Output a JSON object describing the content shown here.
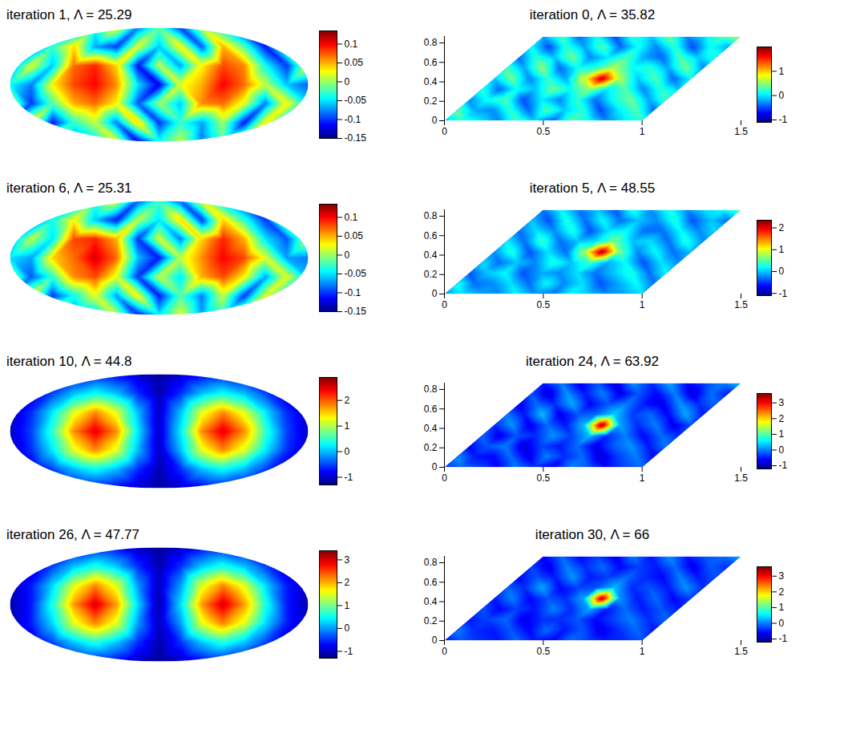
{
  "chart_data": [
    {
      "type": "skymap",
      "title": "iteration 1, Λ = 25.29",
      "color": "jet",
      "tick_labels": false,
      "colorbar_range": [
        -0.15,
        0.135
      ],
      "colorbar_ticks": [
        -0.15,
        -0.1,
        -0.05,
        0,
        0.05,
        0.1
      ],
      "cells": [
        [
          -0.06,
          -0.09,
          0.02,
          -0.11,
          -0.04,
          0.03,
          -0.08,
          -0.02,
          -0.1,
          0.01,
          -0.05,
          -0.12,
          0.02,
          -0.07,
          -0.03
        ],
        [
          0.01,
          -0.12,
          -0.03,
          0.04,
          -0.07,
          -0.1,
          0.02,
          -0.06,
          0.03,
          -0.09,
          0.05,
          -0.02,
          -0.11,
          0.0,
          -0.08
        ],
        [
          -0.09,
          0.02,
          -0.06,
          0.07,
          0.09,
          0.04,
          -0.11,
          0.01,
          -0.07,
          0.03,
          0.08,
          0.06,
          -0.04,
          -0.1,
          0.02
        ],
        [
          -0.04,
          -0.08,
          0.03,
          0.08,
          0.1,
          0.06,
          -0.05,
          -0.12,
          0.02,
          0.05,
          0.1,
          0.07,
          0.01,
          -0.06,
          -0.09
        ],
        [
          0.02,
          -0.1,
          -0.02,
          0.05,
          0.07,
          0.03,
          -0.09,
          0.0,
          -0.06,
          0.06,
          0.07,
          0.02,
          -0.08,
          0.03,
          -0.05
        ],
        [
          -0.07,
          0.03,
          -0.11,
          -0.03,
          0.01,
          -0.08,
          0.04,
          -0.1,
          -0.03,
          -0.07,
          0.0,
          -0.11,
          0.03,
          -0.06,
          0.01
        ],
        [
          -0.03,
          -0.06,
          0.01,
          -0.09,
          -0.05,
          0.02,
          -0.12,
          -0.04,
          0.01,
          -0.08,
          -0.02,
          0.03,
          -0.1,
          -0.05,
          -0.07
        ]
      ]
    },
    {
      "type": "heatmap",
      "title": "iteration 0, Λ = 35.82",
      "color": "jet",
      "xlim": [
        0,
        1.5
      ],
      "ylim": [
        0,
        0.866
      ],
      "xticks": [
        0,
        0.5,
        1,
        1.5
      ],
      "yticks": [
        0,
        0.2,
        0.4,
        0.6,
        0.8
      ],
      "domain_corners": [
        [
          0,
          0
        ],
        [
          1,
          0
        ],
        [
          1.5,
          0.866
        ],
        [
          0.5,
          0.866
        ]
      ],
      "colorbar_range": [
        -1.1,
        2.0
      ],
      "colorbar_ticks": [
        -1,
        0,
        1
      ],
      "cells": [
        [
          -0.2,
          0.3,
          -0.4,
          0.1,
          -0.5,
          0.2,
          -0.1,
          0.4,
          -0.3,
          0.0,
          0.3,
          0.6
        ],
        [
          0.1,
          -0.5,
          0.2,
          -0.2,
          0.3,
          -0.4,
          0.1,
          -0.3,
          0.2,
          -0.5,
          0.1,
          -0.2
        ],
        [
          -0.4,
          0.2,
          -0.1,
          0.4,
          -0.3,
          0.0,
          0.3,
          -0.2,
          -0.4,
          0.3,
          -0.1,
          0.2
        ],
        [
          0.3,
          -0.2,
          0.5,
          -0.4,
          0.1,
          0.2,
          0.6,
          0.1,
          0.2,
          -0.2,
          0.4,
          -0.3
        ],
        [
          -0.1,
          0.4,
          -0.3,
          0.2,
          -0.2,
          0.7,
          1.8,
          0.6,
          -0.1,
          0.3,
          -0.4,
          0.1
        ],
        [
          0.2,
          -0.4,
          0.1,
          -0.1,
          0.4,
          0.1,
          0.5,
          0.0,
          0.3,
          -0.3,
          0.2,
          -0.1
        ],
        [
          -0.3,
          0.1,
          0.3,
          -0.5,
          0.0,
          -0.3,
          0.2,
          -0.4,
          0.1,
          0.4,
          -0.2,
          0.3
        ],
        [
          0.4,
          -0.2,
          -0.3,
          0.2,
          -0.4,
          0.3,
          -0.1,
          0.2,
          -0.5,
          0.0,
          0.3,
          -0.4
        ],
        [
          -0.1,
          0.2,
          0.0,
          -0.3,
          0.3,
          -0.1,
          -0.4,
          0.3,
          0.1,
          -0.3,
          0.0,
          0.2
        ]
      ]
    },
    {
      "type": "skymap",
      "title": "iteration 6, Λ = 25.31",
      "color": "jet",
      "tick_labels": false,
      "colorbar_range": [
        -0.15,
        0.135
      ],
      "colorbar_ticks": [
        -0.15,
        -0.1,
        -0.05,
        0,
        0.05,
        0.1
      ],
      "cells": [
        [
          -0.05,
          -0.1,
          0.01,
          -0.1,
          -0.03,
          0.02,
          -0.09,
          -0.03,
          -0.09,
          0.02,
          -0.06,
          -0.11,
          0.03,
          -0.08,
          -0.04
        ],
        [
          0.02,
          -0.11,
          -0.04,
          0.03,
          -0.06,
          -0.11,
          0.01,
          -0.05,
          0.04,
          -0.1,
          0.04,
          -0.03,
          -0.1,
          0.01,
          -0.07
        ],
        [
          -0.08,
          0.01,
          -0.05,
          0.08,
          0.09,
          0.05,
          -0.1,
          0.02,
          -0.08,
          0.04,
          0.09,
          0.05,
          -0.05,
          -0.09,
          0.01
        ],
        [
          -0.05,
          -0.07,
          0.04,
          0.07,
          0.11,
          0.07,
          -0.06,
          -0.11,
          0.01,
          0.06,
          0.1,
          0.08,
          0.02,
          -0.07,
          -0.08
        ],
        [
          0.01,
          -0.09,
          -0.03,
          0.06,
          0.08,
          0.02,
          -0.1,
          0.01,
          -0.05,
          0.05,
          0.08,
          0.03,
          -0.07,
          0.02,
          -0.06
        ],
        [
          -0.06,
          0.02,
          -0.1,
          -0.04,
          0.02,
          -0.07,
          0.03,
          -0.11,
          -0.02,
          -0.08,
          0.01,
          -0.1,
          0.02,
          -0.05,
          0.0
        ],
        [
          -0.04,
          -0.05,
          0.02,
          -0.08,
          -0.06,
          0.01,
          -0.11,
          -0.05,
          0.02,
          -0.07,
          -0.03,
          0.02,
          -0.09,
          -0.06,
          -0.08
        ]
      ]
    },
    {
      "type": "heatmap",
      "title": "iteration 5, Λ = 48.55",
      "color": "jet",
      "xlim": [
        0,
        1.5
      ],
      "ylim": [
        0,
        0.866
      ],
      "xticks": [
        0,
        0.5,
        1,
        1.5
      ],
      "yticks": [
        0,
        0.2,
        0.4,
        0.6,
        0.8
      ],
      "domain_corners": [
        [
          0,
          0
        ],
        [
          1,
          0
        ],
        [
          1.5,
          0.866
        ],
        [
          0.5,
          0.866
        ]
      ],
      "colorbar_range": [
        -1.1,
        2.35
      ],
      "colorbar_ticks": [
        -1,
        0,
        1,
        2
      ],
      "cells": [
        [
          -0.3,
          0.2,
          -0.3,
          0.0,
          -0.4,
          0.3,
          -0.2,
          0.3,
          -0.2,
          0.1,
          0.2,
          0.5
        ],
        [
          0.0,
          -0.4,
          0.3,
          -0.3,
          0.2,
          -0.3,
          0.0,
          -0.2,
          0.3,
          -0.4,
          0.0,
          -0.3
        ],
        [
          -0.3,
          0.1,
          -0.2,
          0.3,
          -0.4,
          0.1,
          0.2,
          -0.3,
          -0.3,
          0.2,
          -0.2,
          0.1
        ],
        [
          0.2,
          -0.3,
          0.4,
          -0.3,
          0.0,
          0.1,
          0.6,
          0.0,
          0.1,
          -0.3,
          0.3,
          -0.2
        ],
        [
          -0.2,
          0.3,
          -0.4,
          0.1,
          -0.3,
          0.7,
          2.2,
          0.6,
          -0.2,
          0.2,
          -0.3,
          0.0
        ],
        [
          0.1,
          -0.3,
          0.0,
          -0.2,
          0.3,
          0.0,
          0.4,
          -0.1,
          0.2,
          -0.4,
          0.1,
          -0.2
        ],
        [
          -0.4,
          0.0,
          0.2,
          -0.4,
          -0.1,
          -0.2,
          0.1,
          -0.3,
          0.0,
          0.3,
          -0.3,
          0.2
        ],
        [
          0.3,
          -0.3,
          -0.2,
          0.1,
          -0.3,
          0.2,
          -0.2,
          0.1,
          -0.4,
          -0.1,
          0.2,
          -0.3
        ],
        [
          -0.2,
          0.1,
          -0.1,
          -0.2,
          0.2,
          -0.2,
          -0.3,
          0.2,
          0.0,
          -0.2,
          -0.1,
          0.1
        ]
      ]
    },
    {
      "type": "skymap",
      "title": "iteration 10, Λ = 44.8",
      "color": "jet",
      "tick_labels": false,
      "colorbar_range": [
        -1.3,
        2.9
      ],
      "colorbar_ticks": [
        -1,
        0,
        1,
        2
      ],
      "cells": [
        [
          -1.2,
          -1.1,
          -1.0,
          -0.8,
          -0.7,
          -0.8,
          -1.0,
          -1.2,
          -1.0,
          -0.8,
          -0.7,
          -0.8,
          -1.0,
          -1.1,
          -1.2
        ],
        [
          -1.1,
          -0.9,
          -0.5,
          0.0,
          0.3,
          0.0,
          -0.6,
          -1.1,
          -0.6,
          0.0,
          0.3,
          0.0,
          -0.5,
          -0.9,
          -1.1
        ],
        [
          -1.0,
          -0.6,
          0.2,
          1.2,
          1.8,
          1.2,
          0.0,
          -1.0,
          0.0,
          1.2,
          1.8,
          1.2,
          0.2,
          -0.6,
          -1.0
        ],
        [
          -1.0,
          -0.5,
          0.5,
          1.8,
          2.5,
          1.8,
          0.2,
          -1.0,
          0.2,
          1.8,
          2.5,
          1.8,
          0.5,
          -0.5,
          -1.0
        ],
        [
          -1.0,
          -0.6,
          0.2,
          1.2,
          1.8,
          1.2,
          0.0,
          -1.0,
          0.0,
          1.2,
          1.8,
          1.2,
          0.2,
          -0.6,
          -1.0
        ],
        [
          -1.1,
          -0.9,
          -0.5,
          0.0,
          0.3,
          0.0,
          -0.6,
          -1.1,
          -0.6,
          0.0,
          0.3,
          0.0,
          -0.5,
          -0.9,
          -1.1
        ],
        [
          -1.2,
          -1.1,
          -1.0,
          -0.8,
          -0.7,
          -0.8,
          -1.0,
          -1.2,
          -1.0,
          -0.8,
          -0.7,
          -0.8,
          -1.0,
          -1.1,
          -1.2
        ]
      ]
    },
    {
      "type": "heatmap",
      "title": "iteration 24, Λ = 63.92",
      "color": "jet",
      "xlim": [
        0,
        1.5
      ],
      "ylim": [
        0,
        0.866
      ],
      "xticks": [
        0,
        0.5,
        1,
        1.5
      ],
      "yticks": [
        0,
        0.2,
        0.4,
        0.6,
        0.8
      ],
      "domain_corners": [
        [
          0,
          0
        ],
        [
          1,
          0
        ],
        [
          1.5,
          0.866
        ],
        [
          0.5,
          0.866
        ]
      ],
      "colorbar_range": [
        -1.2,
        3.6
      ],
      "colorbar_ticks": [
        -1,
        0,
        1,
        2,
        3
      ],
      "cells": [
        [
          -0.5,
          0.0,
          -0.7,
          -0.2,
          -0.8,
          0.1,
          -0.4,
          0.2,
          -0.6,
          -0.3,
          0.0,
          0.3
        ],
        [
          -0.2,
          -0.8,
          0.1,
          -0.5,
          0.0,
          -0.7,
          -0.2,
          -0.6,
          0.0,
          -0.8,
          -0.1,
          -0.5
        ],
        [
          -0.7,
          -0.1,
          -0.4,
          0.2,
          -0.6,
          -0.2,
          0.0,
          -0.5,
          -0.7,
          0.1,
          -0.4,
          -0.1
        ],
        [
          0.0,
          -0.5,
          0.3,
          -0.7,
          -0.2,
          -0.1,
          0.4,
          -0.3,
          -0.1,
          -0.6,
          0.2,
          -0.5
        ],
        [
          -0.4,
          0.1,
          -0.7,
          -0.1,
          -0.5,
          0.3,
          3.5,
          0.2,
          -0.4,
          0.0,
          -0.7,
          -0.2
        ],
        [
          -0.1,
          -0.7,
          -0.2,
          -0.4,
          0.1,
          -0.3,
          0.3,
          -0.4,
          0.0,
          -0.6,
          -0.1,
          -0.4
        ],
        [
          -0.6,
          -0.2,
          0.0,
          -0.8,
          -0.3,
          -0.5,
          -0.1,
          -0.7,
          -0.2,
          0.1,
          -0.5,
          0.0
        ],
        [
          0.1,
          -0.5,
          -0.6,
          -0.1,
          -0.7,
          0.0,
          -0.4,
          -0.1,
          -0.8,
          -0.3,
          0.0,
          -0.6
        ],
        [
          -0.4,
          -0.1,
          -0.3,
          -0.6,
          0.0,
          -0.4,
          -0.7,
          0.0,
          -0.2,
          -0.6,
          -0.3,
          -0.1
        ]
      ]
    },
    {
      "type": "skymap",
      "title": "iteration 26, Λ = 47.77",
      "color": "jet",
      "tick_labels": false,
      "colorbar_range": [
        -1.3,
        3.4
      ],
      "colorbar_ticks": [
        -1,
        0,
        1,
        2,
        3
      ],
      "cells": [
        [
          -1.2,
          -1.1,
          -1.0,
          -0.7,
          -0.6,
          -0.7,
          -1.0,
          -1.2,
          -1.0,
          -0.7,
          -0.6,
          -0.7,
          -1.0,
          -1.1,
          -1.2
        ],
        [
          -1.1,
          -0.9,
          -0.4,
          0.2,
          0.6,
          0.2,
          -0.5,
          -1.1,
          -0.5,
          0.2,
          0.6,
          0.2,
          -0.4,
          -0.9,
          -1.1
        ],
        [
          -1.0,
          -0.6,
          0.3,
          1.5,
          2.2,
          1.5,
          0.0,
          -1.0,
          0.0,
          1.5,
          2.2,
          1.5,
          0.3,
          -0.6,
          -1.0
        ],
        [
          -1.1,
          -0.6,
          0.6,
          2.1,
          3.0,
          2.1,
          0.3,
          -1.1,
          0.3,
          2.1,
          3.0,
          2.1,
          0.6,
          -0.6,
          -1.1
        ],
        [
          -1.0,
          -0.6,
          0.3,
          1.5,
          2.2,
          1.5,
          0.0,
          -1.0,
          0.0,
          1.5,
          2.2,
          1.5,
          0.3,
          -0.6,
          -1.0
        ],
        [
          -1.1,
          -0.9,
          -0.4,
          0.2,
          0.6,
          0.2,
          -0.5,
          -1.1,
          -0.5,
          0.2,
          0.6,
          0.2,
          -0.4,
          -0.9,
          -1.1
        ],
        [
          -1.2,
          -1.1,
          -1.0,
          -0.7,
          -0.6,
          -0.7,
          -1.0,
          -1.2,
          -1.0,
          -0.7,
          -0.6,
          -0.7,
          -1.0,
          -1.1,
          -1.2
        ]
      ]
    },
    {
      "type": "heatmap",
      "title": "iteration 30, Λ = 66",
      "color": "jet",
      "xlim": [
        0,
        1.5
      ],
      "ylim": [
        0,
        0.866
      ],
      "xticks": [
        0,
        0.5,
        1,
        1.5
      ],
      "yticks": [
        0,
        0.2,
        0.4,
        0.6,
        0.8
      ],
      "domain_corners": [
        [
          0,
          0
        ],
        [
          1,
          0
        ],
        [
          1.5,
          0.866
        ],
        [
          0.5,
          0.866
        ]
      ],
      "colorbar_range": [
        -1.2,
        3.6
      ],
      "colorbar_ticks": [
        -1,
        0,
        1,
        2,
        3
      ],
      "cells": [
        [
          -0.6,
          -0.1,
          -0.6,
          -0.3,
          -0.7,
          0.0,
          -0.5,
          0.1,
          -0.5,
          -0.2,
          -0.1,
          0.2
        ],
        [
          -0.3,
          -0.7,
          0.0,
          -0.4,
          -0.1,
          -0.6,
          -0.3,
          -0.5,
          -0.1,
          -0.7,
          -0.2,
          -0.4
        ],
        [
          -0.6,
          -0.2,
          -0.5,
          0.1,
          -0.5,
          -0.3,
          -0.1,
          -0.4,
          -0.6,
          0.0,
          -0.5,
          -0.2
        ],
        [
          -0.1,
          -0.4,
          0.2,
          -0.6,
          -0.3,
          -0.2,
          0.3,
          -0.4,
          -0.2,
          -0.5,
          0.1,
          -0.4
        ],
        [
          -0.5,
          0.0,
          -0.6,
          -0.2,
          -0.4,
          0.2,
          3.4,
          0.1,
          -0.5,
          -0.1,
          -0.6,
          -0.3
        ],
        [
          -0.2,
          -0.6,
          -0.3,
          -0.5,
          0.0,
          -0.4,
          0.2,
          -0.5,
          -0.1,
          -0.5,
          -0.2,
          -0.5
        ],
        [
          -0.5,
          -0.3,
          -0.1,
          -0.7,
          -0.4,
          -0.4,
          -0.2,
          -0.6,
          -0.3,
          0.0,
          -0.4,
          -0.1
        ],
        [
          0.0,
          -0.4,
          -0.5,
          -0.2,
          -0.6,
          -0.1,
          -0.5,
          -0.2,
          -0.7,
          -0.4,
          -0.1,
          -0.5
        ],
        [
          -0.5,
          -0.2,
          -0.4,
          -0.5,
          -0.1,
          -0.5,
          -0.6,
          -0.1,
          -0.3,
          -0.5,
          -0.4,
          -0.2
        ]
      ]
    }
  ]
}
